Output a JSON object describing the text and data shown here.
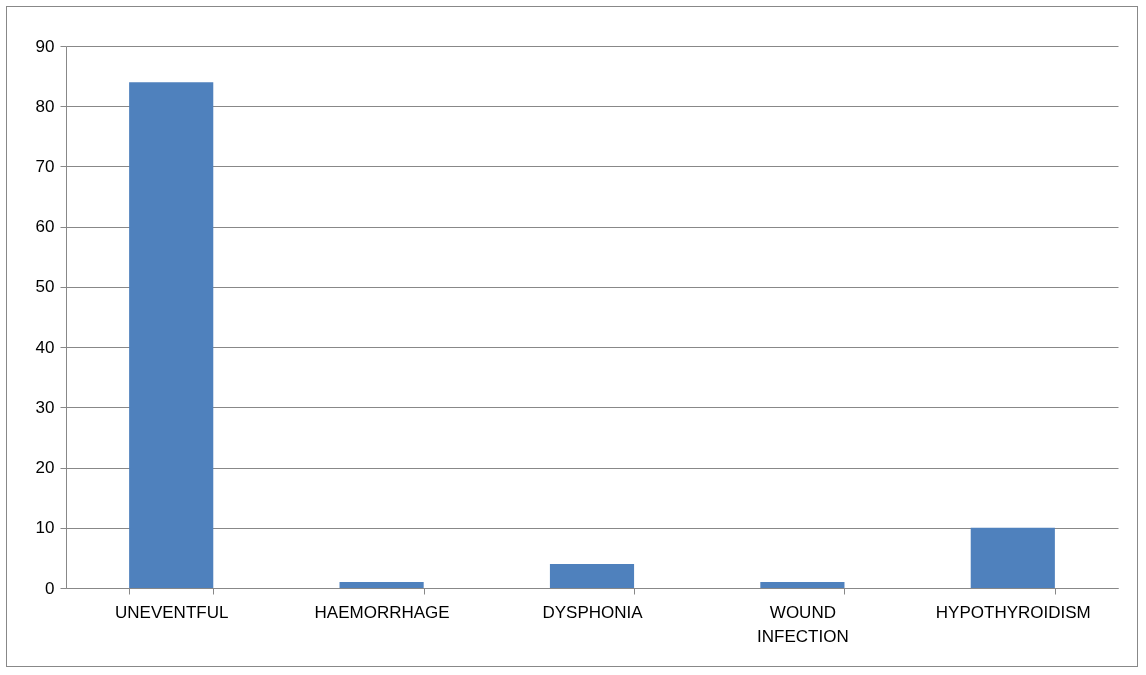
{
  "chart_data": {
    "type": "bar",
    "categories": [
      "UNEVENTFUL",
      "HAEMORRHAGE",
      "DYSPHONIA",
      "WOUND INFECTION",
      "HYPOTHYROIDISM"
    ],
    "values": [
      84,
      1,
      4,
      1,
      10
    ],
    "color": "#4f81bd",
    "ylim": [
      0,
      90
    ],
    "yticks": [
      0,
      10,
      20,
      30,
      40,
      50,
      60,
      70,
      80,
      90
    ],
    "grid": "y"
  }
}
